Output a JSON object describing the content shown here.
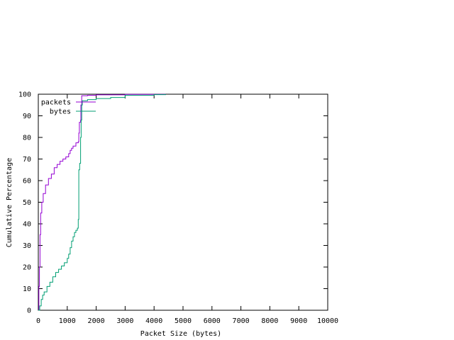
{
  "chart_data": {
    "type": "line",
    "title": "",
    "xlabel": "Packet Size (bytes)",
    "ylabel": "Cumulative Percentage",
    "xlim": [
      0,
      10000
    ],
    "ylim": [
      0,
      100
    ],
    "x_ticks": [
      "0",
      "1000",
      "2000",
      "3000",
      "4000",
      "5000",
      "6000",
      "7000",
      "8000",
      "9000",
      "10000"
    ],
    "y_ticks": [
      "0",
      "10",
      "20",
      "30",
      "40",
      "50",
      "60",
      "70",
      "80",
      "90",
      "100"
    ],
    "grid": false,
    "legend_position": "top-left",
    "series": [
      {
        "name": "packets",
        "color": "#9400d3",
        "step": true,
        "points": [
          [
            0,
            0
          ],
          [
            20,
            11
          ],
          [
            40,
            20
          ],
          [
            60,
            35
          ],
          [
            80,
            45
          ],
          [
            120,
            50
          ],
          [
            170,
            54
          ],
          [
            250,
            58
          ],
          [
            350,
            61
          ],
          [
            450,
            63
          ],
          [
            550,
            66
          ],
          [
            650,
            67.5
          ],
          [
            750,
            69
          ],
          [
            850,
            70
          ],
          [
            950,
            71
          ],
          [
            1050,
            72.5
          ],
          [
            1100,
            74
          ],
          [
            1150,
            75
          ],
          [
            1200,
            76
          ],
          [
            1300,
            77.5
          ],
          [
            1380,
            78
          ],
          [
            1400,
            82
          ],
          [
            1420,
            87
          ],
          [
            1460,
            88
          ],
          [
            1470,
            95
          ],
          [
            1500,
            99.3
          ],
          [
            1700,
            99.5
          ],
          [
            2000,
            99.7
          ],
          [
            3000,
            99.9
          ],
          [
            4400,
            100
          ]
        ]
      },
      {
        "name": "bytes",
        "color": "#009e73",
        "step": true,
        "points": [
          [
            0,
            0
          ],
          [
            50,
            2
          ],
          [
            100,
            5
          ],
          [
            150,
            7
          ],
          [
            200,
            8.5
          ],
          [
            300,
            11
          ],
          [
            400,
            13
          ],
          [
            500,
            15.5
          ],
          [
            600,
            17.5
          ],
          [
            700,
            19
          ],
          [
            800,
            20.5
          ],
          [
            900,
            22
          ],
          [
            1000,
            24
          ],
          [
            1050,
            26
          ],
          [
            1100,
            29
          ],
          [
            1150,
            32
          ],
          [
            1200,
            34
          ],
          [
            1250,
            36
          ],
          [
            1300,
            37
          ],
          [
            1350,
            38
          ],
          [
            1380,
            42
          ],
          [
            1400,
            65
          ],
          [
            1430,
            68
          ],
          [
            1460,
            80
          ],
          [
            1480,
            88
          ],
          [
            1500,
            95
          ],
          [
            1520,
            97
          ],
          [
            1700,
            97.5
          ],
          [
            2000,
            98
          ],
          [
            2500,
            98.5
          ],
          [
            3000,
            99.5
          ],
          [
            4000,
            99.8
          ],
          [
            4400,
            100
          ]
        ]
      }
    ]
  }
}
